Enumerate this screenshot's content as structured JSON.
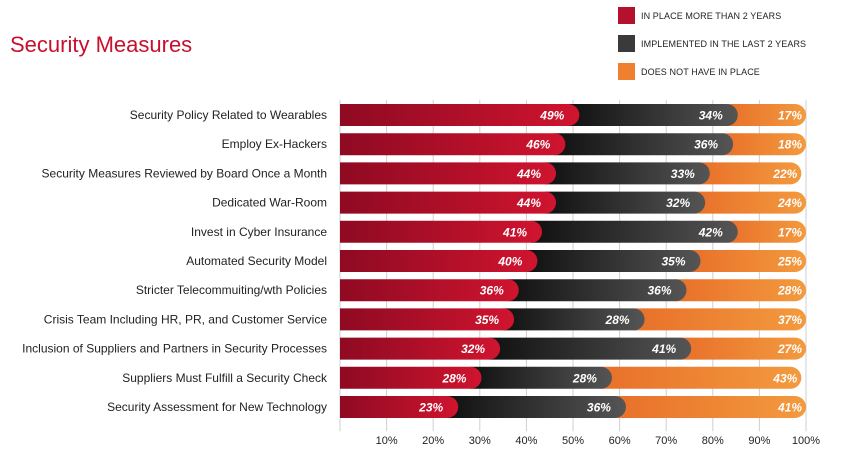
{
  "title": "Security Measures",
  "legend": [
    {
      "label": "IN PLACE MORE THAN 2 YEARS",
      "color": "#b5112f"
    },
    {
      "label": "IMPLEMENTED IN THE LAST 2 YEARS",
      "color": "#3a3a3a"
    },
    {
      "label": "DOES NOT HAVE IN PLACE",
      "color": "#ee8030"
    }
  ],
  "chart_data": {
    "type": "bar",
    "orientation": "horizontal",
    "stacked": true,
    "title": "Security Measures",
    "categories": [
      "Security Policy Related to Wearables",
      "Employ Ex-Hackers",
      "Security Measures Reviewed by Board Once a Month",
      "Dedicated War-Room",
      "Invest in Cyber Insurance",
      "Automated Security Model",
      "Stricter Telecommuiting/wth Policies",
      "Crisis Team Including HR, PR, and Customer Service",
      "Inclusion of Suppliers and Partners in Security Processes",
      "Suppliers Must Fulfill a Security Check",
      "Security Assessment for New Technology"
    ],
    "series": [
      {
        "name": "IN PLACE MORE THAN 2 YEARS",
        "color": "#b5112f",
        "values": [
          49,
          46,
          44,
          44,
          41,
          40,
          36,
          35,
          32,
          28,
          23
        ]
      },
      {
        "name": "IMPLEMENTED IN THE LAST 2 YEARS",
        "color": "#3a3a3a",
        "values": [
          34,
          36,
          33,
          32,
          42,
          35,
          36,
          28,
          41,
          28,
          36
        ]
      },
      {
        "name": "DOES NOT HAVE IN PLACE",
        "color": "#ee8030",
        "values": [
          17,
          18,
          22,
          24,
          17,
          25,
          28,
          37,
          27,
          43,
          41
        ]
      }
    ],
    "value_suffix": "%",
    "xlim": [
      0,
      100
    ],
    "xticks": [
      "10%",
      "20%",
      "30%",
      "40%",
      "50%",
      "60%",
      "70%",
      "80%",
      "90%",
      "100%"
    ],
    "grid": true
  }
}
